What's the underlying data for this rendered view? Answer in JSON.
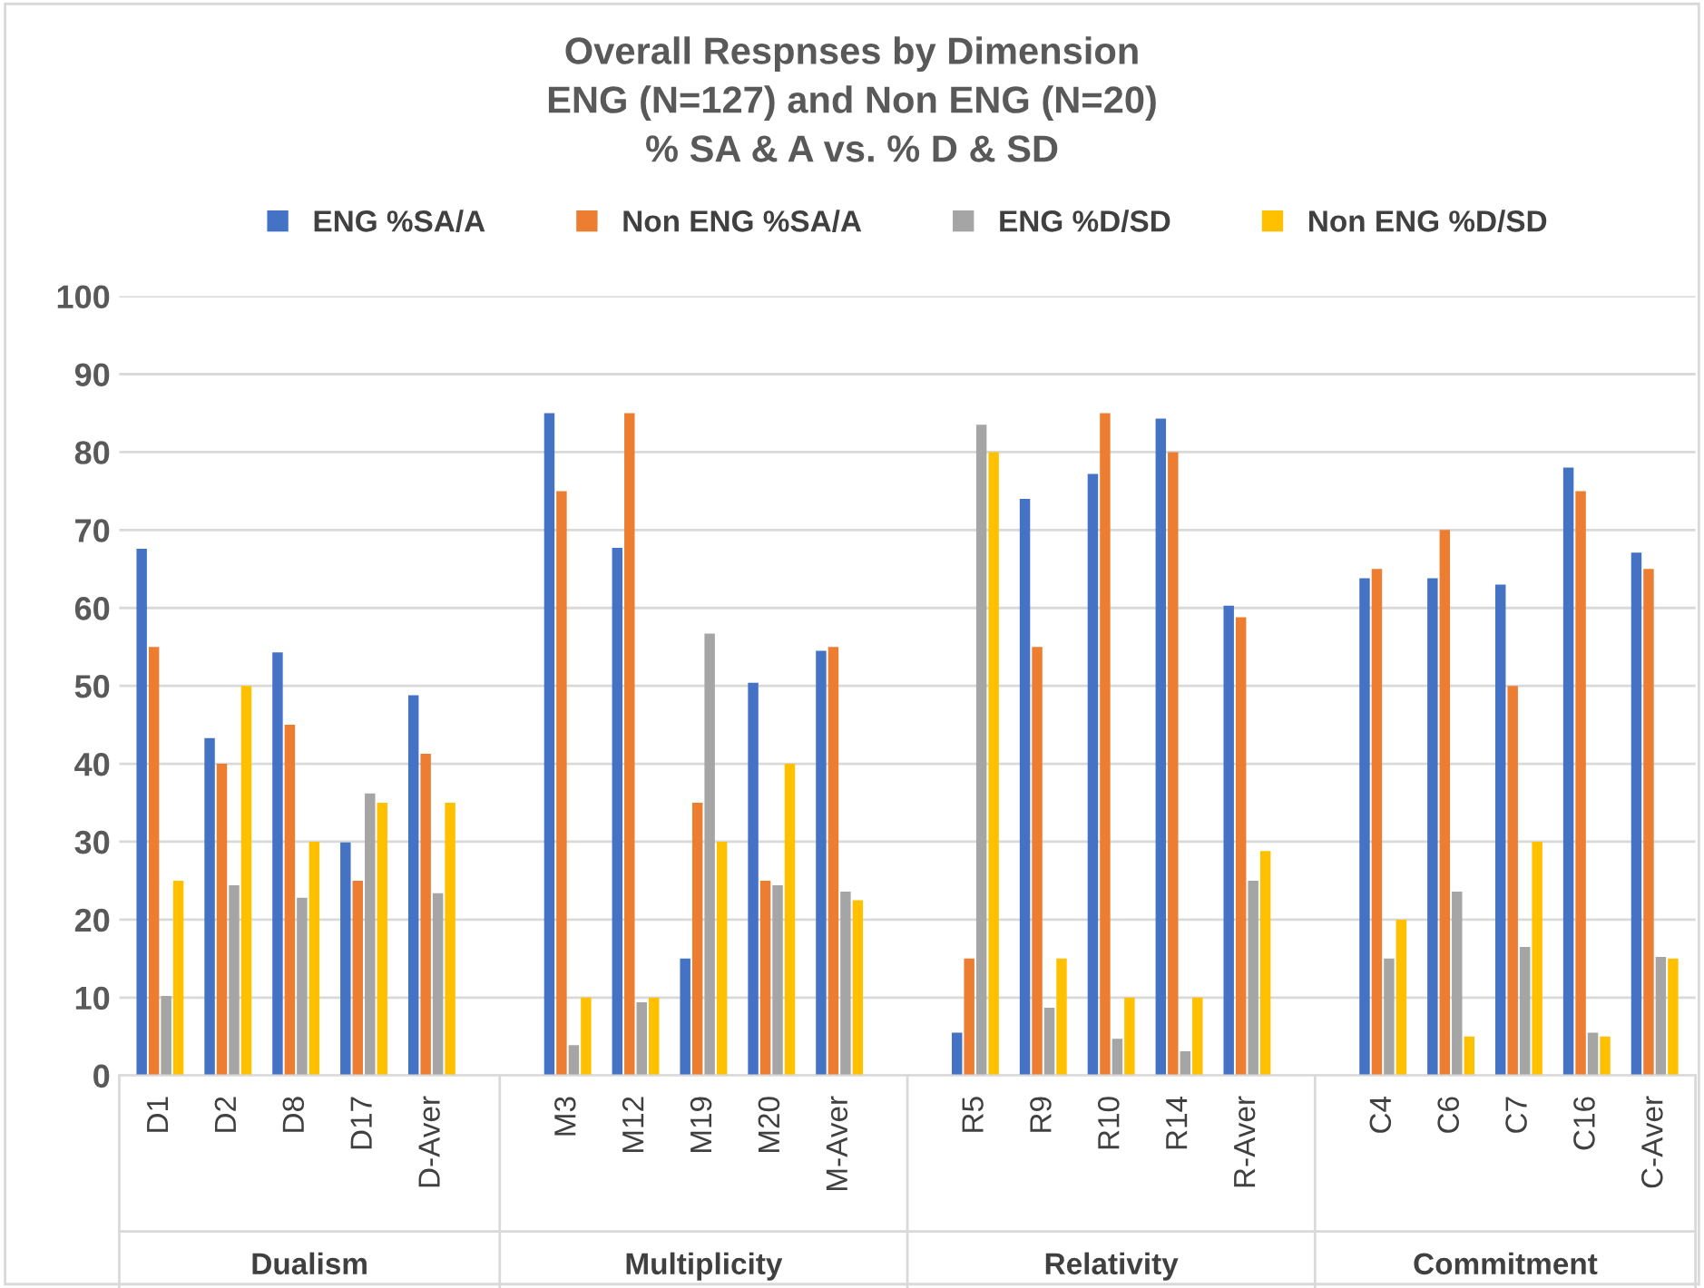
{
  "chart_data": {
    "type": "bar",
    "title": "Overall Respnses by Dimension\nENG (N=127) and Non ENG (N=20)\n% SA & A vs. % D & SD",
    "categories": [
      "D1",
      "D2",
      "D8",
      "D17",
      "D-Aver",
      null,
      "M3",
      "M12",
      "M19",
      "M20",
      "M-Aver",
      null,
      "R5",
      "R9",
      "R10",
      "R14",
      "R-Aver",
      null,
      "C4",
      "C6",
      "C7",
      "C16",
      "C-Aver"
    ],
    "series": [
      {
        "name": "ENG %SA/A",
        "color": "#4472c4",
        "values": [
          67.6,
          43.3,
          54.3,
          29.9,
          48.8,
          null,
          85,
          67.7,
          15,
          50.4,
          54.5,
          null,
          5.5,
          74,
          77.2,
          84.3,
          60.3,
          null,
          63.8,
          63.8,
          63,
          78,
          67.1
        ]
      },
      {
        "name": "Non ENG %SA/A",
        "color": "#ed7d31",
        "values": [
          55,
          40,
          45,
          25,
          41.3,
          null,
          75,
          85,
          35,
          25,
          55,
          null,
          15,
          55,
          85,
          80,
          58.8,
          null,
          65,
          70,
          50,
          75,
          65
        ]
      },
      {
        "name": "ENG %D/SD",
        "color": "#a5a5a5",
        "values": [
          10.2,
          24.4,
          22.8,
          36.2,
          23.4,
          null,
          3.9,
          9.4,
          56.7,
          24.4,
          23.6,
          null,
          83.5,
          8.7,
          4.7,
          3.1,
          25,
          null,
          15,
          23.6,
          16.5,
          5.5,
          15.2
        ]
      },
      {
        "name": "Non ENG %D/SD",
        "color": "#ffc000",
        "values": [
          25,
          50,
          30,
          35,
          35,
          null,
          10,
          10,
          30,
          40,
          22.5,
          null,
          80,
          15,
          10,
          10,
          28.8,
          null,
          20,
          5,
          30,
          5,
          15
        ]
      }
    ],
    "annotations": [
      "Dualism",
      "Multiplicity",
      "Relativity",
      "Commitment"
    ],
    "ylim": [
      0,
      100
    ],
    "yticks": [
      0,
      10,
      20,
      30,
      40,
      50,
      60,
      70,
      80,
      90,
      100
    ],
    "grid": "y",
    "legend": "top"
  }
}
